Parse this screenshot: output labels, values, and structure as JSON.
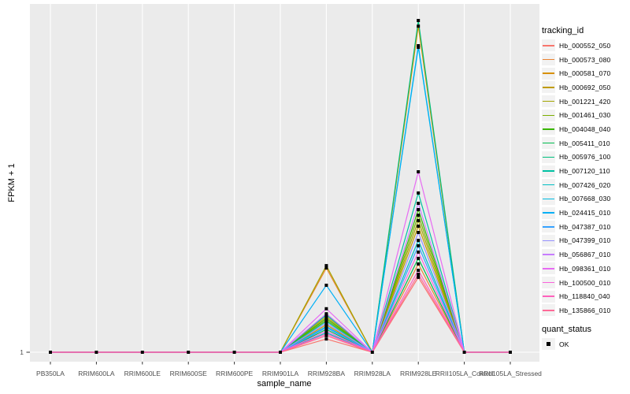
{
  "colors": {
    "panel_bg": "#EBEBEB",
    "gridline": "#FFFFFF",
    "tick_label": "#4D4D4D",
    "tick_mark": "#333333",
    "axis_title": "#000000",
    "point": "#000000",
    "legend_key_bg": "#F2F2F2"
  },
  "legend": {
    "tracking_title": "tracking_id",
    "quant_title": "quant_status",
    "quant_label": "OK"
  },
  "chart_data": {
    "type": "line",
    "title": "",
    "xlabel": "sample_name",
    "ylabel": "FPKM + 1",
    "y_axis_ticks": [
      "1"
    ],
    "value_scale_note": "values_rel are relative heights: 0 = baseline tick '1' (FPKM+1 = 1), 1 = tallest observed peak; only the y tick '1' is labeled in the figure",
    "grid": "white major gridlines on gray panel",
    "legend_position": "right",
    "point_marker": "small black square (quant_status = OK)",
    "categories": [
      "PB350LA",
      "RRIM600LA",
      "RRIM600LE",
      "RRIM600SE",
      "RRIM600PE",
      "RRIM901LA",
      "RRIM928BA",
      "RRIM928LA",
      "RRIM928LE",
      "RRII105LA_Control",
      "RRII105LA_Stressed"
    ],
    "series": [
      {
        "name": "Hb_000552_050",
        "color": "#F8766D",
        "values_rel": [
          0,
          0,
          0,
          0,
          0,
          0,
          0.04,
          0,
          0.226,
          0,
          0
        ]
      },
      {
        "name": "Hb_000573_080",
        "color": "#EA8331",
        "values_rel": [
          0,
          0,
          0,
          0,
          0,
          0,
          0.254,
          0,
          0.266,
          0,
          0
        ]
      },
      {
        "name": "Hb_000581_070",
        "color": "#D89000",
        "values_rel": [
          0,
          0,
          0,
          0,
          0,
          0,
          0.083,
          0,
          0.983,
          0,
          0
        ]
      },
      {
        "name": "Hb_000692_050",
        "color": "#C09B00",
        "values_rel": [
          0,
          0,
          0,
          0,
          0,
          0,
          0.107,
          0,
          0.38,
          0,
          0
        ]
      },
      {
        "name": "Hb_001221_420",
        "color": "#A3A500",
        "values_rel": [
          0,
          0,
          0,
          0,
          0,
          0,
          0.261,
          0,
          0.397,
          0,
          0
        ]
      },
      {
        "name": "Hb_001461_030",
        "color": "#7CAE00",
        "values_rel": [
          0,
          0,
          0,
          0,
          0,
          0,
          0.097,
          0,
          0.413,
          0,
          0
        ]
      },
      {
        "name": "Hb_004048_040",
        "color": "#39B600",
        "values_rel": [
          0,
          0,
          0,
          0,
          0,
          0,
          0.102,
          0,
          0.43,
          0,
          0
        ]
      },
      {
        "name": "Hb_005411_010",
        "color": "#00BB4E",
        "values_rel": [
          0,
          0,
          0,
          0,
          0,
          0,
          0.069,
          0,
          0.283,
          0,
          0
        ]
      },
      {
        "name": "Hb_005976_100",
        "color": "#00BF7D",
        "values_rel": [
          0,
          0,
          0,
          0,
          0,
          0,
          0.112,
          0,
          1.0,
          0,
          0
        ]
      },
      {
        "name": "Hb_007120_110",
        "color": "#00C1A3",
        "values_rel": [
          0,
          0,
          0,
          0,
          0,
          0,
          0.093,
          0,
          0.48,
          0,
          0
        ]
      },
      {
        "name": "Hb_007426_020",
        "color": "#00BFC4",
        "values_rel": [
          0,
          0,
          0,
          0,
          0,
          0,
          0.059,
          0,
          0.337,
          0,
          0
        ]
      },
      {
        "name": "Hb_007668_030",
        "color": "#00BAE0",
        "values_rel": [
          0,
          0,
          0,
          0,
          0,
          0,
          0.078,
          0,
          0.919,
          0,
          0
        ]
      },
      {
        "name": "Hb_024415_010",
        "color": "#00B0F6",
        "values_rel": [
          0,
          0,
          0,
          0,
          0,
          0,
          0.202,
          0,
          0.924,
          0,
          0
        ]
      },
      {
        "name": "Hb_047387_010",
        "color": "#35A2FF",
        "values_rel": [
          0,
          0,
          0,
          0,
          0,
          0,
          0.074,
          0,
          0.321,
          0,
          0
        ]
      },
      {
        "name": "Hb_047399_010",
        "color": "#9590FF",
        "values_rel": [
          0,
          0,
          0,
          0,
          0,
          0,
          0.088,
          0,
          0.361,
          0,
          0
        ]
      },
      {
        "name": "Hb_056867_010",
        "color": "#C77CFF",
        "values_rel": [
          0,
          0,
          0,
          0,
          0,
          0,
          0.116,
          0,
          0.449,
          0,
          0
        ]
      },
      {
        "name": "Hb_098361_010",
        "color": "#E76BF3",
        "values_rel": [
          0,
          0,
          0,
          0,
          0,
          0,
          0.131,
          0,
          0.544,
          0,
          0
        ]
      },
      {
        "name": "Hb_100500_010",
        "color": "#FA62DB",
        "values_rel": [
          0,
          0,
          0,
          0,
          0,
          0,
          0.064,
          0,
          0.302,
          0,
          0
        ]
      },
      {
        "name": "Hb_118840_040",
        "color": "#FF62BC",
        "values_rel": [
          0,
          0,
          0,
          0,
          0,
          0,
          0.055,
          0,
          0.247,
          0,
          0
        ]
      },
      {
        "name": "Hb_135866_010",
        "color": "#FF6A98",
        "values_rel": [
          0,
          0,
          0,
          0,
          0,
          0,
          0.05,
          0,
          0.235,
          0,
          0
        ]
      }
    ]
  }
}
